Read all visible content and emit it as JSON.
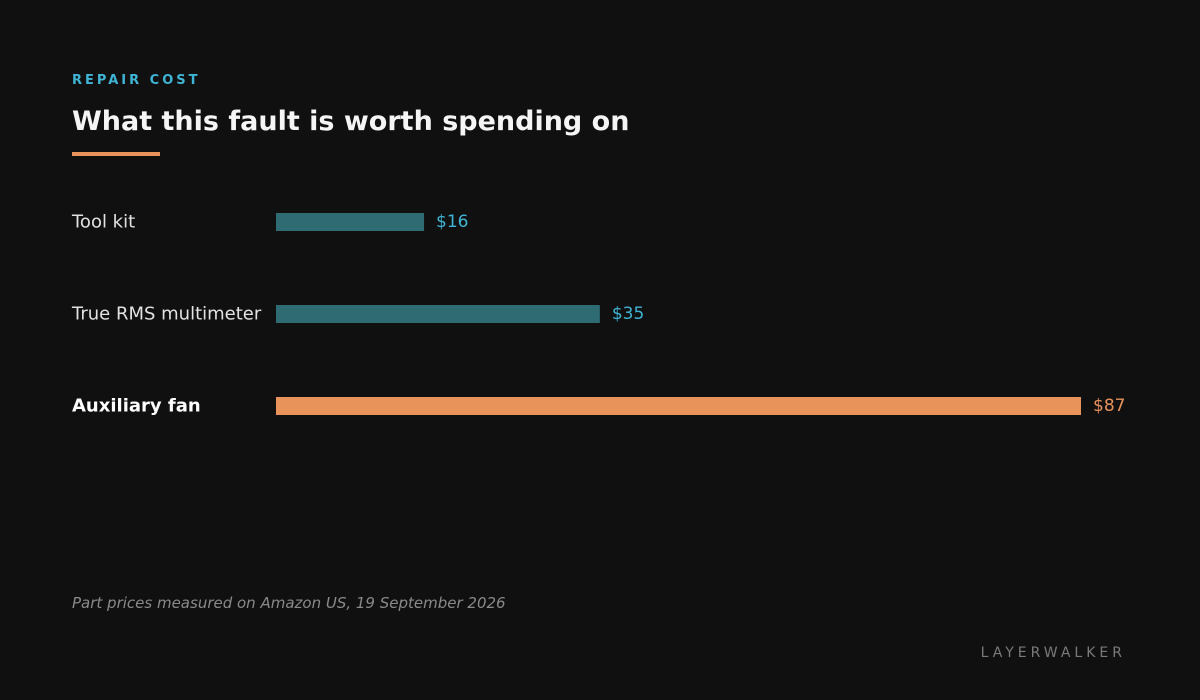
{
  "eyebrow": "REPAIR COST",
  "chart_data": {
    "type": "bar",
    "orientation": "horizontal",
    "title": "What this fault is worth spending on",
    "categories": [
      "Tool kit",
      "True RMS multimeter",
      "Auxiliary fan"
    ],
    "values": [
      16,
      35,
      87
    ],
    "value_labels": [
      "$16",
      "$35",
      "$87"
    ],
    "highlight": "Auxiliary fan",
    "xlim": [
      0,
      87
    ],
    "grid": false,
    "legend": "none"
  },
  "colors": {
    "bar": "#2e6b73",
    "highlight_bar": "#e8935a",
    "accent": "#3fb5d6",
    "background": "#101010"
  },
  "note": "Part prices measured on Amazon US, 19 September 2026",
  "brand": "LAYERWALKER"
}
